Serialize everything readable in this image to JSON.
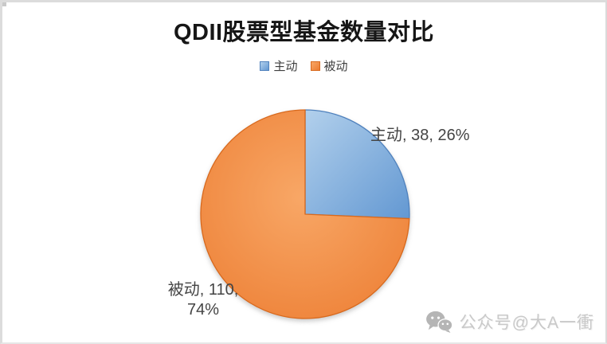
{
  "chart_data": {
    "type": "pie",
    "title": "QDII股票型基金数量对比",
    "start_angle_deg": 0,
    "direction": "clockwise",
    "legend_position": "top",
    "background": "#ffffff",
    "categories": [
      "主动",
      "被动"
    ],
    "values": [
      38,
      110
    ],
    "percentages": [
      "26%",
      "74%"
    ],
    "series": [
      {
        "name": "主动",
        "value": 38,
        "pct": "26%",
        "data_label": "主动, 38, 26%",
        "data_label_lines": [
          "主动, 38, 26%"
        ],
        "gradient": [
          "#b2d0ec",
          "#6398d2"
        ],
        "border": "#4f81bd"
      },
      {
        "name": "被动",
        "value": 110,
        "pct": "74%",
        "data_label": "被动, 110, 74%",
        "data_label_lines": [
          "被动, 110,",
          "74%"
        ],
        "gradient": [
          "#f8a766",
          "#ec7c31"
        ],
        "border": "#d8691d"
      }
    ]
  },
  "watermark": {
    "icon": "wechat-icon",
    "text": "公众号@大A一衝",
    "color": "#c9c9c9"
  },
  "frame_border_color": "#dcdcdc"
}
